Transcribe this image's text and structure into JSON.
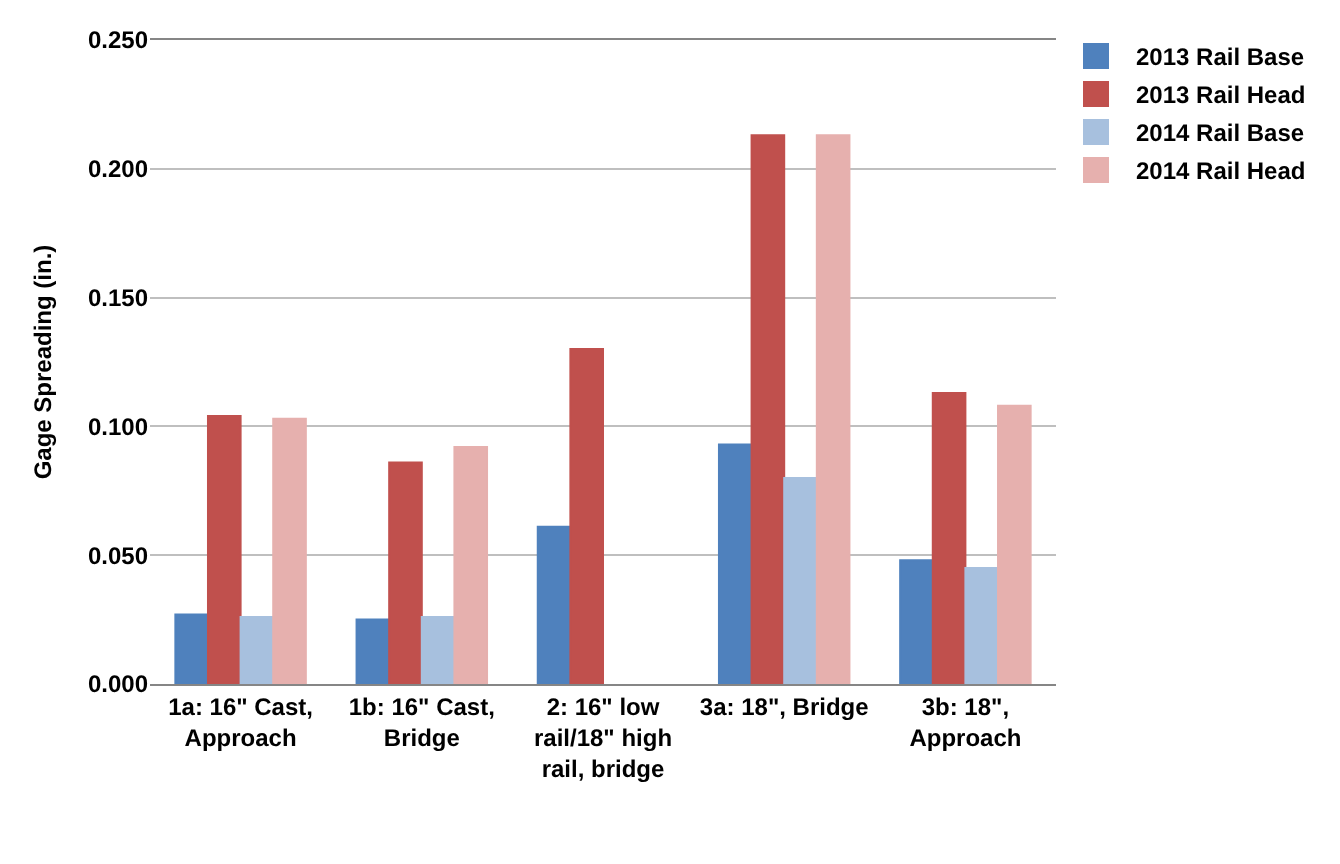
{
  "chart_data": {
    "type": "bar",
    "ylabel": "Gage Spreading (in.)",
    "categories": [
      "1a: 16\" Cast, Approach",
      "1b: 16\" Cast, Bridge",
      "2: 16\" low rail/18\" high rail, bridge",
      "3a: 18\", Bridge",
      "3b: 18\", Approach"
    ],
    "series": [
      {
        "name": "2013 Rail Base",
        "color": "#4f81bd",
        "values": [
          0.027,
          0.025,
          0.061,
          0.093,
          0.048
        ]
      },
      {
        "name": "2013 Rail Head",
        "color": "#c0504d",
        "values": [
          0.104,
          0.086,
          0.13,
          0.213,
          0.113
        ]
      },
      {
        "name": "2014 Rail Base",
        "color": "#a7c0de",
        "values": [
          0.026,
          0.026,
          null,
          0.08,
          0.045
        ]
      },
      {
        "name": "2014 Rail Head",
        "color": "#e6b0ae",
        "values": [
          0.103,
          0.092,
          null,
          0.213,
          0.108
        ]
      }
    ],
    "ylim": [
      0,
      0.25
    ],
    "yticks": [
      {
        "value": 0,
        "label": "0.000"
      },
      {
        "value": 0.05,
        "label": "0.050"
      },
      {
        "value": 0.1,
        "label": "0.100"
      },
      {
        "value": 0.15,
        "label": "0.150"
      },
      {
        "value": 0.2,
        "label": "0.200"
      },
      {
        "value": 0.25,
        "label": "0.250"
      }
    ],
    "grid": "y",
    "legend": "top right"
  }
}
